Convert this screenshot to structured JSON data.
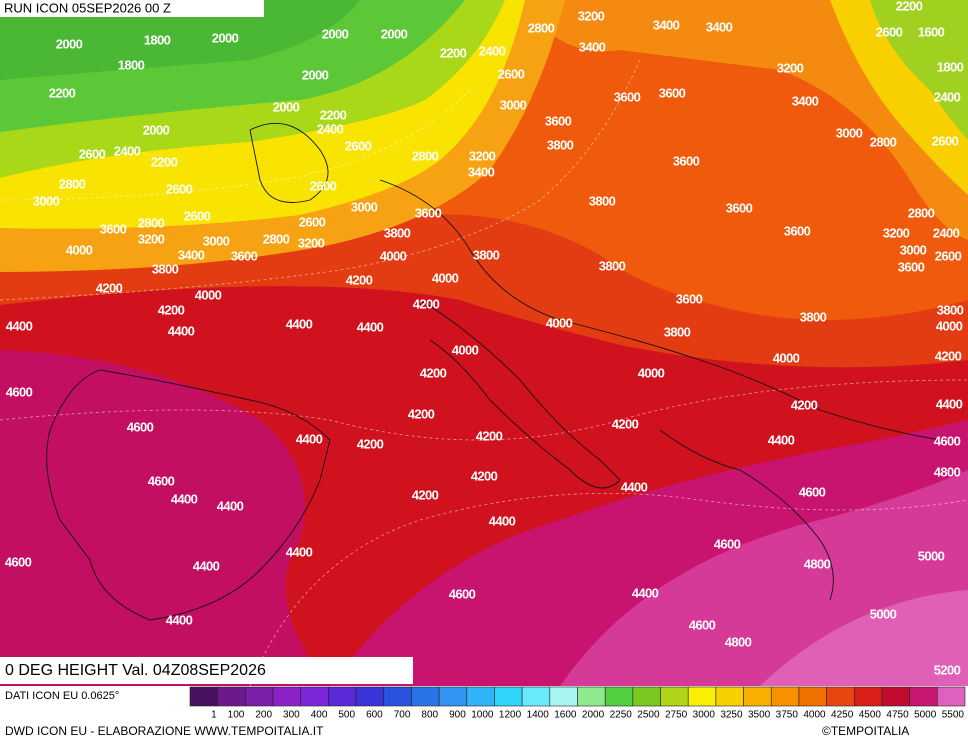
{
  "header": {
    "run": "RUN ICON 05SEP2026 00 Z"
  },
  "map": {
    "contour_labels": [
      2000,
      1800,
      2000,
      2000,
      2000,
      2800,
      3200,
      3400,
      3400,
      2200,
      2600,
      1600,
      1800,
      1800,
      2000,
      2200,
      2400,
      3400,
      2600,
      3200,
      2400,
      2200,
      2000,
      2200,
      2400,
      3000,
      3600,
      3600,
      3400,
      2000,
      2600,
      3600,
      3000,
      2800,
      2600,
      2600,
      2400,
      2200,
      2800,
      3200,
      3800,
      3400,
      3600,
      2800,
      2600,
      2600,
      3000,
      3600,
      3800,
      3600,
      2800,
      3000,
      2600,
      2800,
      3600,
      2600,
      3200,
      3000,
      2800,
      3200,
      3800,
      3600,
      3200,
      2400,
      4000,
      3400,
      3600,
      4000,
      3800,
      3000,
      2600,
      3800,
      3800,
      3600,
      4200,
      4000,
      4200,
      4000,
      3600,
      3800,
      4200,
      4200,
      3800,
      4000,
      4400,
      4400,
      4400,
      4400,
      4000,
      3800,
      4000,
      4200,
      4000,
      4200,
      4000,
      4600,
      4200,
      4400,
      4200,
      4600,
      4200,
      4400,
      4200,
      4200,
      4400,
      4600,
      4800,
      4200,
      4600,
      4400,
      4400,
      4600,
      4400,
      4200,
      4400,
      4600,
      4400,
      5000,
      4600,
      4400,
      4800,
      4600,
      4400,
      5000,
      4400,
      4600,
      4800,
      5200
    ]
  },
  "title": "0 DEG HEIGHT Val. 04Z08SEP2026",
  "legend": {
    "source": "DATI ICON EU 0.0625°",
    "labels": [
      1,
      100,
      200,
      300,
      400,
      500,
      600,
      700,
      800,
      900,
      1000,
      1200,
      1400,
      1600,
      2000,
      2250,
      2500,
      2750,
      3000,
      3250,
      3500,
      3750,
      4000,
      4250,
      4500,
      4750,
      5000,
      5500
    ],
    "colors": [
      "#4a1060",
      "#6a1a8a",
      "#7c1fa8",
      "#8c22c8",
      "#7a28d8",
      "#5a2ad8",
      "#3a34d8",
      "#2a54e0",
      "#2a74e8",
      "#3094f0",
      "#30b4f8",
      "#30d4f8",
      "#68eaf8",
      "#a8f4f0",
      "#90e890",
      "#50d040",
      "#78c820",
      "#b0d418",
      "#f8f000",
      "#f8d000",
      "#f8b000",
      "#f89000",
      "#f07000",
      "#e84810",
      "#d82018",
      "#c00c30",
      "#c81870",
      "#e060c0"
    ]
  },
  "footer": {
    "credit": "DWD ICON EU - ELABORAZIONE WWW.TEMPOITALIA.IT",
    "copyright": "©TEMPOITALIA"
  }
}
